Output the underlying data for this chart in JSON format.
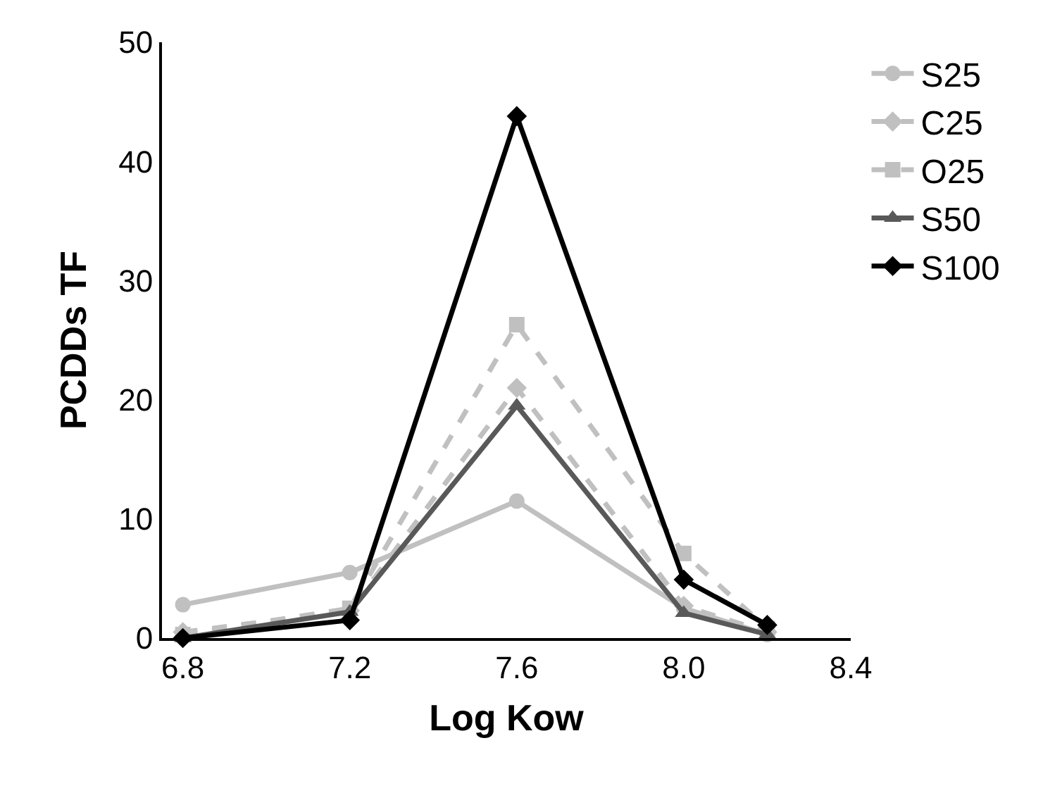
{
  "chart_data": {
    "type": "line",
    "xlabel": "Log Kow",
    "ylabel": "PCDDs TF",
    "x": [
      6.8,
      7.2,
      7.6,
      8.0,
      8.2
    ],
    "xlim": [
      6.75,
      8.4
    ],
    "xticks": [
      {
        "value": 6.8,
        "label": "6.8"
      },
      {
        "value": 7.2,
        "label": "7.2"
      },
      {
        "value": 7.6,
        "label": "7.6"
      },
      {
        "value": 8.0,
        "label": "8.0"
      },
      {
        "value": 8.4,
        "label": "8.4"
      }
    ],
    "ylim": [
      0,
      50
    ],
    "yticks": [
      0,
      10,
      20,
      30,
      40,
      50
    ],
    "legend": "right",
    "series": [
      {
        "name": "S25",
        "color": "#c0c0c0",
        "marker": "circle",
        "line_style": "solid",
        "values": [
          2.8,
          5.5,
          11.5,
          2.5,
          0.3
        ]
      },
      {
        "name": "C25",
        "color": "#c0c0c0",
        "marker": "diamond",
        "line_style": "dashed",
        "values": [
          0.5,
          2.3,
          21,
          2.7,
          0.5
        ]
      },
      {
        "name": "O25",
        "color": "#c0c0c0",
        "marker": "square",
        "line_style": "dashed",
        "values": [
          0.3,
          2.5,
          26.3,
          7.1,
          0.8
        ]
      },
      {
        "name": "S50",
        "color": "#595959",
        "marker": "triangle",
        "line_style": "solid",
        "values": [
          0,
          2.2,
          19.5,
          2.1,
          0.3
        ]
      },
      {
        "name": "S100",
        "color": "#000000",
        "marker": "diamond",
        "line_style": "solid",
        "values": [
          0,
          1.5,
          43.8,
          4.9,
          1.1
        ]
      }
    ]
  }
}
